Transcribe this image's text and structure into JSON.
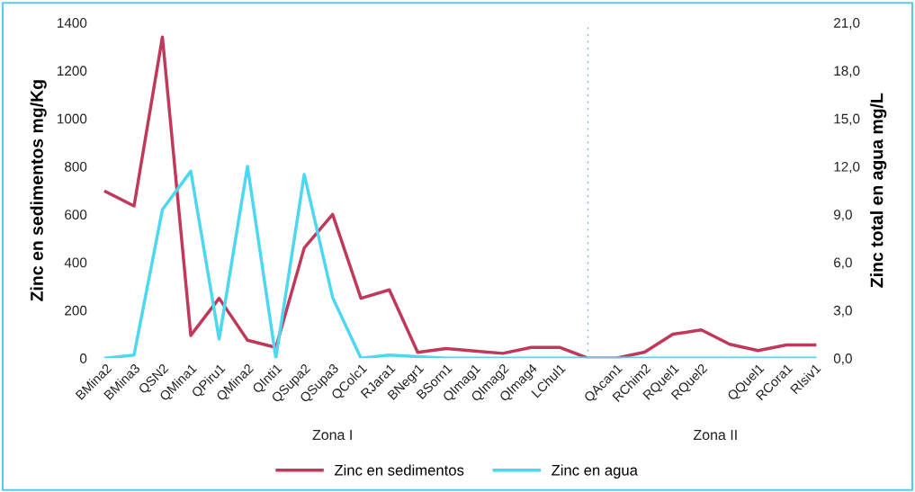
{
  "chart_data": {
    "type": "line",
    "categories": [
      "BMina2",
      "BMina3",
      "QSN2",
      "QMina1",
      "QPiru1",
      "QMina2",
      "QInti1",
      "QSupa2",
      "QSupa3",
      "QColc1",
      "RJara1",
      "BNegr1",
      "BSorn1",
      "QImag1",
      "QImag2",
      "QImag4",
      "LChul1",
      null,
      "QAcan1",
      "RChim2",
      "RQuel1",
      "RQuel2",
      null,
      "QQuel1",
      "RCora1",
      "RIsiv1"
    ],
    "series": [
      {
        "name": "Zinc en sedimentos",
        "color": "#c0395a",
        "values": [
          695,
          635,
          1340,
          95,
          250,
          75,
          45,
          460,
          600,
          250,
          285,
          24,
          40,
          30,
          20,
          45,
          45,
          0,
          0,
          25,
          100,
          118,
          58,
          32,
          55,
          55
        ]
      },
      {
        "name": "Zinc en agua",
        "color": "#4dd8f0",
        "axis": "y2",
        "values": [
          0.0,
          0.2,
          9.3,
          11.7,
          1.2,
          12.0,
          0.0,
          11.5,
          3.8,
          0.0,
          0.2,
          0.1,
          0.0,
          0.0,
          0.0,
          0.0,
          0.0,
          0.0,
          0.0,
          0.0,
          0.0,
          0.0,
          0.0,
          0.0,
          0.0,
          0.0
        ]
      }
    ],
    "ylabel": "Zinc en sedimentos mg/Kg",
    "y2label": "Zinc total en agua mg/L",
    "ylim": [
      0,
      1400
    ],
    "yticks": [
      0,
      200,
      400,
      600,
      800,
      1000,
      1200,
      1400
    ],
    "y2lim": [
      0,
      21
    ],
    "y2ticks": [
      {
        "value": 0,
        "label": "0,0"
      },
      {
        "value": 3,
        "label": "3,0"
      },
      {
        "value": 6,
        "label": "6,0"
      },
      {
        "value": 9,
        "label": "9,0"
      },
      {
        "value": 12,
        "label": "12,0"
      },
      {
        "value": 15,
        "label": "15,0"
      },
      {
        "value": 18,
        "label": "18,0"
      },
      {
        "value": 21,
        "label": "21,0"
      }
    ],
    "annotations": [
      "Zona I",
      "Zona II"
    ],
    "legend": "bottom",
    "grid": false,
    "marker": "none",
    "line_style": "solid"
  }
}
